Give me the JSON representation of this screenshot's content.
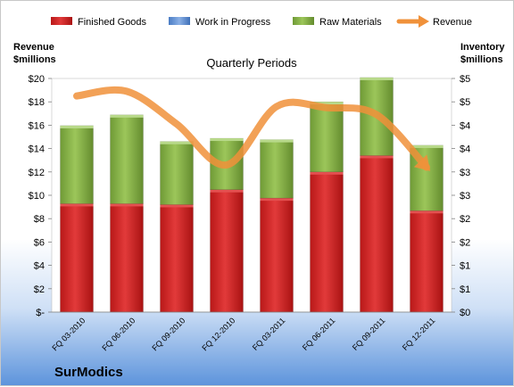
{
  "chart_data": {
    "type": "bar",
    "subtitle": "Quarterly Periods",
    "categories": [
      "FQ 03-2010",
      "FQ 06-2010",
      "FQ 09-2010",
      "FQ 12-2010",
      "FQ 03-2011",
      "FQ 06-2011",
      "FQ 09-2011",
      "FQ 12-2011"
    ],
    "stacked": true,
    "series": [
      {
        "name": "Finished Goods",
        "axis": "right",
        "color": "#cc2020",
        "values": [
          2.32,
          2.32,
          2.3,
          2.62,
          2.44,
          3.0,
          3.35,
          2.17
        ]
      },
      {
        "name": "Work in Progress",
        "axis": "right",
        "color": "#5b8fd6",
        "values": [
          0.0,
          0.0,
          0.0,
          0.0,
          0.0,
          0.0,
          0.0,
          0.0
        ]
      },
      {
        "name": "Raw Materials",
        "axis": "right",
        "color": "#8cb84a",
        "values": [
          1.67,
          1.9,
          1.35,
          1.1,
          1.25,
          1.5,
          1.67,
          1.4
        ]
      },
      {
        "name": "Revenue",
        "axis": "left",
        "type": "line",
        "color": "#f0913a",
        "values": [
          18.5,
          18.9,
          16.1,
          12.6,
          17.6,
          17.5,
          16.9,
          12.4
        ]
      }
    ],
    "left_axis": {
      "label_line1": "Revenue",
      "label_line2": "$millions",
      "range": [
        0,
        20
      ],
      "ticks": [
        "$-",
        "$2",
        "$4",
        "$6",
        "$8",
        "$10",
        "$12",
        "$14",
        "$16",
        "$18",
        "$20"
      ]
    },
    "right_axis": {
      "label_line1": "Inventory",
      "label_line2": "$millions",
      "range": [
        0,
        5
      ],
      "ticks": [
        "$0",
        "$1",
        "$1",
        "$2",
        "$2",
        "$3",
        "$3",
        "$4",
        "$4",
        "$5",
        "$5"
      ]
    },
    "grid": false,
    "legend": "top",
    "brand": "SurModics"
  }
}
